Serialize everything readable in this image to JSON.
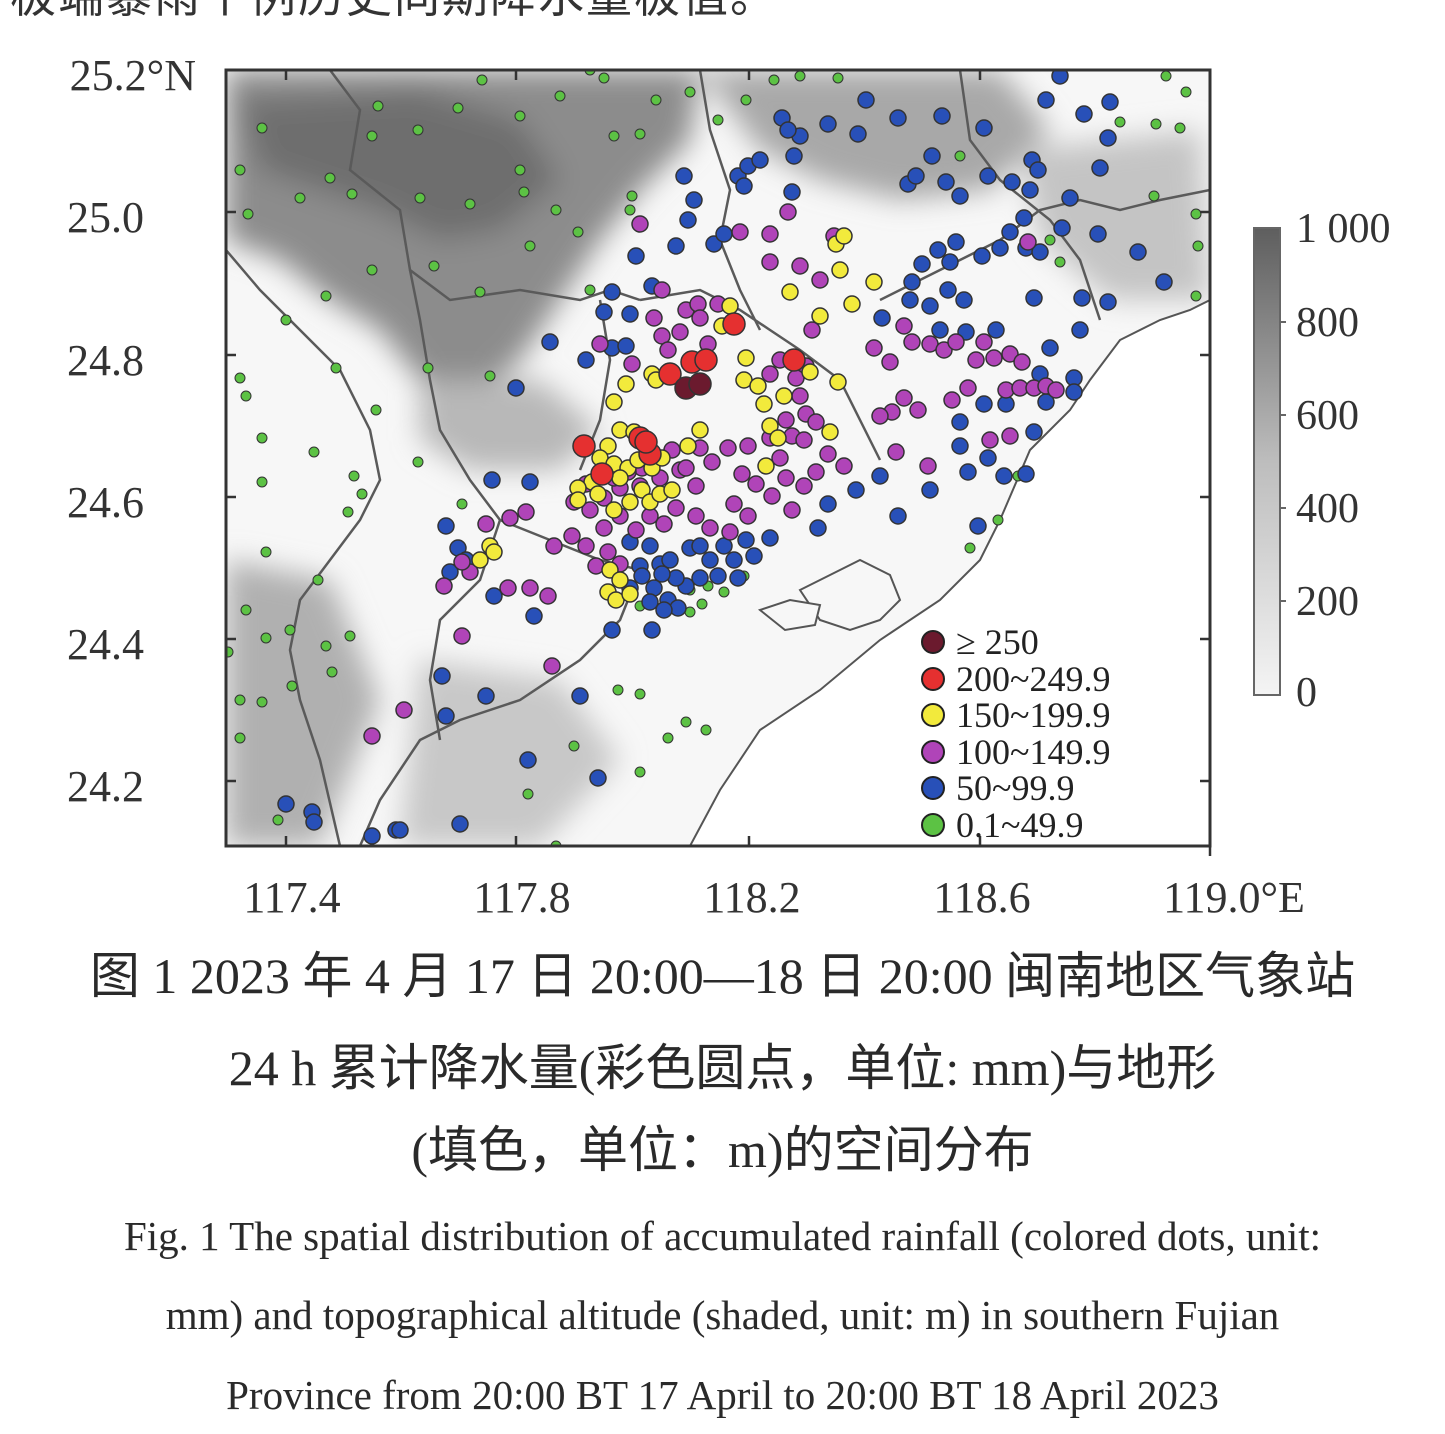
{
  "top_text": "极端暴雨个例历史同期降水量极值。",
  "map": {
    "y_ticks": [
      "25.2°N",
      "25.0",
      "24.8",
      "24.6",
      "24.4",
      "24.2"
    ],
    "x_ticks": [
      "117.4",
      "117.8",
      "118.2",
      "118.6",
      "119.0°E"
    ],
    "lon_range": [
      117.3,
      119.0
    ],
    "lat_range": [
      24.1,
      25.2
    ]
  },
  "colorbar": {
    "labels": [
      "1 000",
      "800",
      "600",
      "400",
      "200",
      "0"
    ],
    "range": [
      0,
      1000
    ],
    "color_high": "#5e5e5e",
    "color_low": "#f4f4f4"
  },
  "legend": [
    {
      "label": "≥ 250",
      "color": "#6b1a2e"
    },
    {
      "label": "200~249.9",
      "color": "#e53030"
    },
    {
      "label": "150~199.9",
      "color": "#f2ea3c"
    },
    {
      "label": "100~149.9",
      "color": "#b044b8"
    },
    {
      "label": "50~99.9",
      "color": "#2850b8"
    },
    {
      "label": "0.1~49.9",
      "color": "#5cc244"
    }
  ],
  "caption": {
    "cn_line1": "图 1 2023 年 4 月 17 日 20:00—18 日 20:00 闽南地区气象站",
    "cn_line2": "24 h 累计降水量(彩色圆点，单位: mm)与地形",
    "cn_line3": "(填色，单位：m)的空间分布",
    "en_line1": "Fig. 1 The spatial distribution of accumulated rainfall (colored dots, unit:",
    "en_line2": "mm) and topographical altitude (shaded, unit: m) in southern Fujian",
    "en_line3": "Province from 20:00 BT 17 April to 20:00 BT 18 April 2023"
  }
}
